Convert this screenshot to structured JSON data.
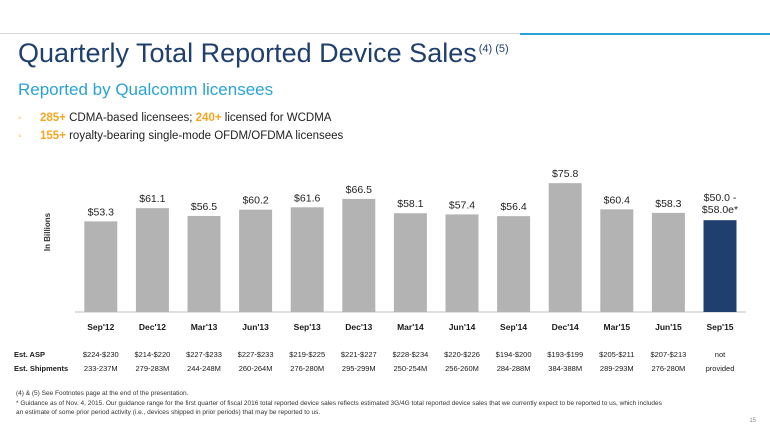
{
  "title": "Quarterly Total Reported Device Sales",
  "title_refs": "(4) (5)",
  "subtitle": "Reported by Qualcomm licensees",
  "bullets": [
    {
      "highlight1": "285+",
      "text1": " CDMA-based licensees; ",
      "highlight2": "240+",
      "text2": " licensed for WCDMA"
    },
    {
      "highlight1": "155+",
      "text1": " royalty-bearing single-mode OFDM/OFDMA licensees",
      "highlight2": "",
      "text2": ""
    }
  ],
  "colors": {
    "bar": "#b3b3b3",
    "bar_highlight": "#1f3f6e",
    "accent": "#f5a623",
    "title": "#1f3f6e",
    "subtitle": "#2aa3d6"
  },
  "chart_data": {
    "type": "bar",
    "ylabel": "In Billions",
    "categories": [
      "Sep'12",
      "Dec'12",
      "Mar'13",
      "Jun'13",
      "Sep'13",
      "Dec'13",
      "Mar'14",
      "Jun'14",
      "Sep'14",
      "Dec'14",
      "Mar'15",
      "Jun'15",
      "Sep'15"
    ],
    "values": [
      53.3,
      61.1,
      56.5,
      60.2,
      61.6,
      66.5,
      58.1,
      57.4,
      56.4,
      75.8,
      60.4,
      58.3,
      54.0
    ],
    "value_labels": [
      "$53.3",
      "$61.1",
      "$56.5",
      "$60.2",
      "$61.6",
      "$66.5",
      "$58.1",
      "$57.4",
      "$56.4",
      "$75.8",
      "$60.4",
      "$58.3",
      "$50.0 -\n$58.0e*"
    ],
    "highlight_index": 12,
    "ylim": [
      0,
      80
    ],
    "grid": false
  },
  "table": {
    "rows": [
      {
        "label": "Est. ASP",
        "values": [
          "$224-$230",
          "$214-$220",
          "$227-$233",
          "$227-$233",
          "$219-$225",
          "$221-$227",
          "$228-$234",
          "$220-$226",
          "$194-$200",
          "$193-$199",
          "$205-$211",
          "$207-$213",
          "not"
        ]
      },
      {
        "label": "Est. Shipments",
        "values": [
          "233-237M",
          "279-283M",
          "244-248M",
          "260-264M",
          "276-280M",
          "295-299M",
          "250-254M",
          "256-260M",
          "284-288M",
          "384-388M",
          "289-293M",
          "276-280M",
          "provided"
        ]
      }
    ]
  },
  "footnotes": [
    "(4) & (5) See Footnotes page at the end of the presentation.",
    "* Guidance as of Nov. 4, 2015. Our guidance range for the first quarter of fiscal 2016 total reported device sales reflects estimated 3G/4G total reported device sales that we currently expect to be reported to us, which includes",
    "an estimate of some prior period activity (i.e., devices shipped in prior periods) that may be reported to us."
  ],
  "page_number": "15"
}
